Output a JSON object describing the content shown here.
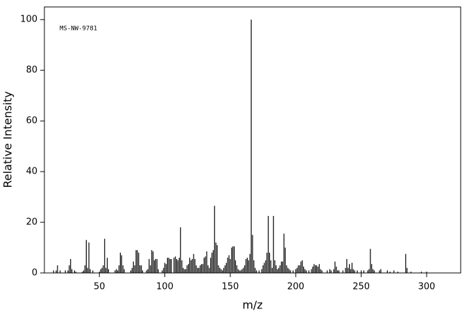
{
  "chart_data": {
    "type": "stick",
    "annotation": "MS-NW-9781",
    "xlabel": "m/z",
    "ylabel": "Relative Intensity",
    "color": "#000000",
    "xlim": [
      8,
      326
    ],
    "ylim": [
      0,
      105
    ],
    "xticks": [
      50,
      100,
      150,
      200,
      250,
      300
    ],
    "yticks": [
      0,
      20,
      40,
      60,
      80,
      100
    ],
    "x": [
      15,
      17,
      18,
      20,
      24,
      26,
      27,
      28,
      29,
      31,
      32,
      37,
      38,
      39,
      40,
      41,
      42,
      43,
      45,
      50,
      51,
      52,
      53,
      54,
      55,
      56,
      57,
      62,
      63,
      64,
      65,
      66,
      67,
      68,
      69,
      74,
      75,
      76,
      77,
      78,
      79,
      80,
      81,
      82,
      83,
      86,
      87,
      88,
      89,
      90,
      91,
      92,
      93,
      94,
      95,
      98,
      99,
      100,
      101,
      102,
      103,
      104,
      105,
      107,
      108,
      109,
      110,
      111,
      112,
      113,
      114,
      115,
      116,
      117,
      118,
      119,
      120,
      121,
      122,
      123,
      124,
      125,
      126,
      127,
      128,
      129,
      130,
      131,
      132,
      133,
      134,
      135,
      136,
      137,
      138,
      139,
      140,
      141,
      142,
      143,
      144,
      145,
      146,
      147,
      148,
      149,
      150,
      151,
      152,
      153,
      154,
      155,
      156,
      157,
      158,
      159,
      160,
      161,
      162,
      163,
      164,
      165,
      166,
      167,
      168,
      169,
      170,
      172,
      174,
      175,
      176,
      177,
      178,
      179,
      180,
      181,
      182,
      183,
      184,
      185,
      186,
      187,
      188,
      189,
      190,
      191,
      192,
      193,
      194,
      195,
      196,
      198,
      200,
      201,
      202,
      203,
      204,
      205,
      206,
      207,
      208,
      210,
      212,
      213,
      214,
      215,
      216,
      217,
      218,
      219,
      220,
      224,
      226,
      227,
      229,
      230,
      231,
      232,
      233,
      236,
      238,
      239,
      240,
      241,
      242,
      243,
      244,
      245,
      247,
      250,
      252,
      255,
      256,
      257,
      258,
      259,
      260,
      264,
      265,
      270,
      272,
      275,
      278,
      284,
      285,
      288,
      296,
      300
    ],
    "values": [
      1,
      1,
      3,
      1,
      1,
      1,
      3,
      5.5,
      1.5,
      1,
      0.5,
      0.5,
      1,
      3,
      13,
      2,
      12,
      1.5,
      1,
      0.5,
      1.5,
      2,
      3,
      13.5,
      2,
      6,
      1.5,
      1,
      1.5,
      1,
      3,
      8,
      7,
      3,
      1.5,
      1,
      2,
      4.5,
      3,
      9,
      9,
      8,
      3,
      3,
      1,
      1,
      1.5,
      5.5,
      3,
      9,
      8.5,
      5,
      5.5,
      5.5,
      1.5,
      1,
      2,
      4,
      3.5,
      6,
      6,
      5.5,
      5.5,
      6,
      6.5,
      5.5,
      5,
      6,
      18,
      5,
      2,
      1.5,
      1.5,
      3,
      3.5,
      6,
      5,
      5.5,
      7.5,
      5.5,
      3,
      2,
      2,
      3,
      3.5,
      3.5,
      6,
      6.5,
      8.5,
      3,
      2,
      6,
      8,
      9,
      26.5,
      12,
      11,
      3,
      2,
      1.5,
      1,
      2,
      3,
      4,
      6,
      7,
      5.5,
      10,
      10.5,
      10.5,
      5,
      3,
      1.5,
      1,
      1,
      1.5,
      2,
      3,
      5.5,
      6,
      5,
      7.5,
      100,
      15,
      5,
      2,
      1,
      1,
      1.5,
      3,
      4,
      5,
      8,
      22.5,
      8,
      5,
      2,
      22.5,
      5,
      3,
      1.5,
      2,
      3,
      4.5,
      4.5,
      15.5,
      10,
      3,
      2,
      1.5,
      1,
      1,
      1.5,
      2,
      3,
      3,
      4.5,
      5,
      2.5,
      1.5,
      1,
      1,
      1.5,
      2.5,
      3.5,
      3,
      3,
      2.5,
      3.5,
      1.5,
      1,
      1,
      1.5,
      1,
      1.5,
      4.5,
      2.5,
      1,
      1,
      1,
      2,
      5.5,
      2,
      3.5,
      1.5,
      4,
      1.5,
      1,
      1,
      1,
      1,
      1,
      1.5,
      9.5,
      3.5,
      1.5,
      1,
      1,
      1.5,
      1,
      0.5,
      1,
      0.5,
      7.5,
      2,
      0.5,
      0.5,
      0.5
    ]
  }
}
